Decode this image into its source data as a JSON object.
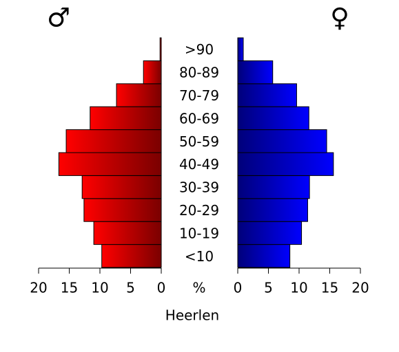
{
  "chart_data": {
    "type": "pyramid",
    "title": "Heerlen",
    "unit_label": "%",
    "categories": [
      "<10",
      "10-19",
      "20-29",
      "30-39",
      "40-49",
      "50-59",
      "60-69",
      "70-79",
      "80-89",
      ">90"
    ],
    "series": [
      {
        "name": "♂",
        "color": "#ff0000",
        "values": [
          9.7,
          11.0,
          12.6,
          12.9,
          16.7,
          15.5,
          11.6,
          7.3,
          2.9,
          0.2
        ]
      },
      {
        "name": "♀",
        "color": "#0000ff",
        "values": [
          8.5,
          10.4,
          11.4,
          11.7,
          15.6,
          14.5,
          11.6,
          9.6,
          5.7,
          0.9
        ]
      }
    ],
    "xlim": [
      0,
      20
    ],
    "xticks": [
      0,
      5,
      10,
      15,
      20
    ]
  }
}
